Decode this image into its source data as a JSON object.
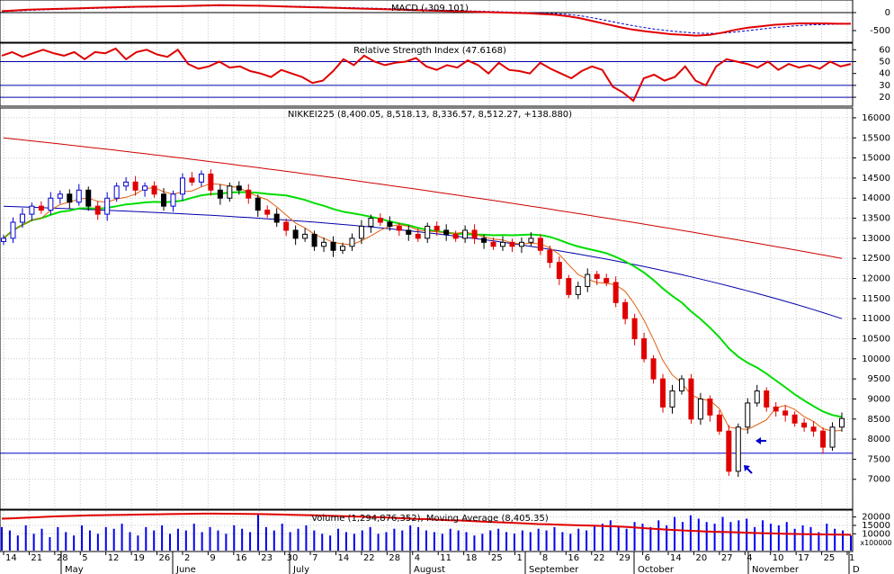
{
  "colors": {
    "background": "#ffffff",
    "grid": "#c9c9c9",
    "frame": "#000000",
    "macd_line": "#e00000",
    "macd_signal": "#0000cc",
    "rsi_line": "#e00000",
    "rsi_levels": "#0000aa",
    "candle_up_fill": "#ffffff",
    "candle_down_fill": "#000000",
    "candle_red": "#e00000",
    "candle_blue": "#0000cc",
    "ma_short": "#e06010",
    "ma_mid": "#00dd00",
    "ma_long_blue": "#0000aa",
    "ma_long_red": "#cc0000",
    "support_line": "#0000cc",
    "volume_bars": "#0000ee",
    "volume_ma": "#e00000"
  },
  "chart_data": [
    {
      "type": "line",
      "panel": "macd",
      "title": "MACD (-309.101)",
      "ylim": [
        -800,
        300
      ],
      "yticks": [
        0,
        -500
      ],
      "series": [
        {
          "name": "MACD",
          "values": [
            40,
            60,
            80,
            90,
            100,
            110,
            120,
            130,
            140,
            150,
            160,
            165,
            170,
            175,
            180,
            190,
            200,
            205,
            200,
            195,
            190,
            180,
            170,
            160,
            150,
            140,
            130,
            120,
            110,
            100,
            90,
            80,
            70,
            60,
            50,
            40,
            30,
            20,
            10,
            0,
            -10,
            -20,
            -40,
            -60,
            -100,
            -160,
            -240,
            -320,
            -400,
            -470,
            -520,
            -560,
            -600,
            -620,
            -640,
            -620,
            -560,
            -480,
            -420,
            -380,
            -340,
            -320,
            -300,
            -300,
            -300,
            -310,
            -309
          ]
        },
        {
          "name": "Signal",
          "values": [
            30,
            45,
            60,
            75,
            85,
            95,
            105,
            115,
            125,
            135,
            145,
            152,
            160,
            166,
            172,
            180,
            186,
            190,
            192,
            192,
            190,
            186,
            180,
            172,
            164,
            155,
            146,
            137,
            128,
            119,
            110,
            100,
            90,
            80,
            70,
            60,
            50,
            40,
            30,
            20,
            10,
            0,
            -12,
            -26,
            -50,
            -90,
            -150,
            -220,
            -290,
            -360,
            -420,
            -470,
            -510,
            -545,
            -570,
            -580,
            -570,
            -540,
            -500,
            -460,
            -420,
            -390,
            -360,
            -340,
            -330,
            -320,
            -315
          ]
        }
      ]
    },
    {
      "type": "line",
      "panel": "rsi",
      "title": "Relative Strength Index (47.6168)",
      "ylim": [
        14,
        64
      ],
      "yticks": [
        60,
        50,
        40,
        30,
        20
      ],
      "levels": [
        50,
        30,
        20
      ],
      "values": [
        55,
        58,
        54,
        57,
        60,
        57,
        55,
        58,
        52,
        58,
        57,
        61,
        52,
        58,
        60,
        56,
        54,
        60,
        48,
        44,
        46,
        50,
        45,
        46,
        42,
        40,
        37,
        43,
        40,
        37,
        32,
        34,
        42,
        52,
        47,
        55,
        50,
        47,
        49,
        50,
        53,
        46,
        43,
        47,
        45,
        51,
        47,
        40,
        49,
        43,
        42,
        40,
        49,
        44,
        40,
        36,
        42,
        46,
        43,
        29,
        24,
        17,
        36,
        39,
        34,
        37,
        46,
        34,
        30,
        46,
        52,
        50,
        48,
        45,
        50,
        43,
        48,
        45,
        47,
        44,
        50,
        46,
        48
      ]
    },
    {
      "type": "candlestick",
      "panel": "price",
      "title": "NIKKEI225 (8,400.05, 8,518.13, 8,336.57, 8,512.27, +138.880)",
      "ylim": [
        6300,
        16200
      ],
      "yticks": [
        16000,
        15500,
        15000,
        14500,
        14000,
        13500,
        13000,
        12500,
        12000,
        11500,
        11000,
        10500,
        10000,
        9500,
        9000,
        8500,
        8000,
        7500,
        7000
      ],
      "support_level": 7650,
      "annotations": [
        "arrow-left",
        "arrow-up-left"
      ],
      "close": [
        13000,
        13400,
        13600,
        13800,
        13700,
        14000,
        14100,
        13900,
        14200,
        13800,
        13600,
        14000,
        14300,
        14400,
        14200,
        14300,
        14100,
        13800,
        14100,
        14500,
        14400,
        14600,
        14200,
        14000,
        14300,
        14200,
        14000,
        13700,
        13600,
        13400,
        13200,
        13000,
        13100,
        12800,
        12900,
        12700,
        12800,
        13000,
        13300,
        13500,
        13400,
        13300,
        13200,
        13100,
        13000,
        13300,
        13200,
        13100,
        13000,
        13200,
        13000,
        12900,
        12800,
        12900,
        12800,
        12900,
        13000,
        12700,
        12400,
        12000,
        11600,
        11800,
        12100,
        12000,
        11900,
        11400,
        11000,
        10500,
        10000,
        9500,
        8800,
        9200,
        9500,
        8500,
        9000,
        8600,
        8200,
        7200,
        8300,
        8900,
        9200,
        8800,
        8700,
        8600,
        8400,
        8300,
        8200,
        7800,
        8300,
        8512
      ]
    },
    {
      "type": "bar",
      "panel": "volume",
      "title": "Volume (1,294,876,352), Moving Average (8,405.35)",
      "ylim": [
        0,
        23000
      ],
      "yticks": [
        20000,
        15000,
        10000
      ],
      "scale_label": "x100000",
      "values": [
        14000,
        12000,
        9000,
        15000,
        10000,
        13000,
        8000,
        14000,
        11000,
        9000,
        15000,
        12000,
        10000,
        14000,
        13000,
        16000,
        11000,
        9000,
        14000,
        12000,
        15000,
        10000,
        13000,
        12000,
        16000,
        11000,
        14000,
        12000,
        10000,
        15000,
        13000,
        11000,
        22000,
        14000,
        12000,
        16000,
        11000,
        13000,
        15000,
        12000,
        10000,
        9000,
        13000,
        11000,
        10000,
        12000,
        14000,
        10000,
        11000,
        13000,
        12000,
        15000,
        14000,
        12000,
        11000,
        10000,
        13000,
        12000,
        11000,
        9000,
        10000,
        12000,
        13000,
        11000,
        10000,
        12000,
        11000,
        13000,
        12000,
        14000,
        11000,
        10000,
        13000,
        12000,
        15000,
        16000,
        18000,
        14000,
        13000,
        17000,
        16000,
        14000,
        18000,
        15000,
        20000,
        17000,
        21000,
        19000,
        17000,
        16000,
        20000,
        17000,
        18000,
        19000,
        14000,
        18000,
        16000,
        15000,
        17000,
        13000,
        15000,
        14000,
        11000,
        16000,
        13000,
        12000,
        9000
      ],
      "moving_average": [
        19000,
        19200,
        19500,
        19800,
        20100,
        20400,
        20600,
        20800,
        21000,
        21100,
        21200,
        21300,
        21400,
        21500,
        21600,
        21700,
        21800,
        21900,
        22000,
        22000,
        21950,
        21900,
        21800,
        21700,
        21600,
        21450,
        21300,
        21150,
        21000,
        20800,
        20600,
        20400,
        20200,
        20000,
        19800,
        19500,
        19200,
        18900,
        18700,
        18400,
        18100,
        17900,
        17600,
        17300,
        17000,
        16700,
        16400,
        16100,
        15800,
        15600,
        15400,
        15200,
        15000,
        14800,
        14600,
        14400,
        14000,
        13600,
        13100,
        12700,
        12300,
        12000,
        11700,
        11400,
        11200,
        11000,
        10800,
        10600,
        10400,
        10200,
        10000,
        9900,
        9800,
        9700,
        9600,
        9500,
        9400
      ]
    }
  ],
  "x_axis": {
    "day_labels": [
      "14",
      "21",
      "28",
      "5",
      "12",
      "19",
      "26",
      "2",
      "9",
      "16",
      "23",
      "30",
      "7",
      "14",
      "22",
      "28",
      "4",
      "11",
      "18",
      "25",
      "1",
      "8",
      "16",
      "22",
      "29",
      "6",
      "14",
      "20",
      "27",
      "4",
      "10",
      "17",
      "25",
      "1"
    ],
    "month_labels": [
      "May",
      "June",
      "July",
      "August",
      "September",
      "October",
      "November",
      "D"
    ]
  }
}
